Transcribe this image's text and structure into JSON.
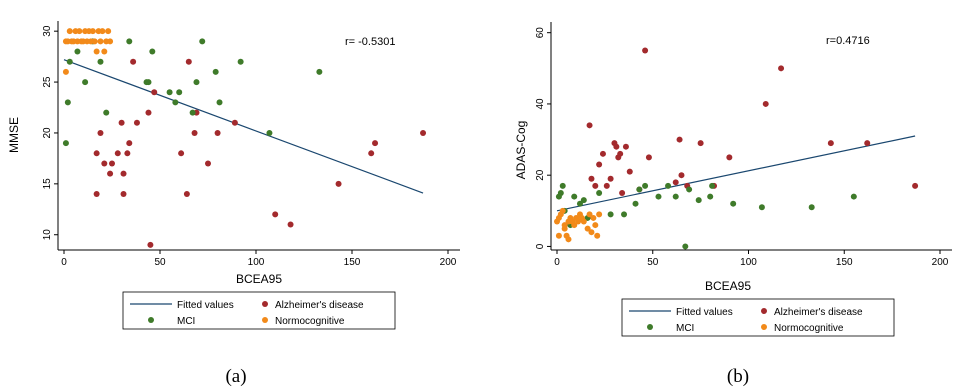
{
  "colors": {
    "fitted": "#1a476f",
    "alzheimer": "#a32a2d",
    "mci": "#3f7b2a",
    "normo": "#f28a1a"
  },
  "chart_data": [
    {
      "type": "scatter",
      "panel_label": "(a)",
      "xlabel": "BCEA95",
      "ylabel": "MMSE",
      "xlim": [
        0,
        200
      ],
      "ylim": [
        8.5,
        31
      ],
      "xticks": [
        0,
        50,
        100,
        150,
        200
      ],
      "yticks": [
        10,
        15,
        20,
        25,
        30
      ],
      "annotation": "r= -0.5301",
      "legend": {
        "position": "bottom",
        "entries": [
          "Fitted values",
          "Alzheimer's disease",
          "MCI",
          "Normocognitive"
        ]
      },
      "fit": {
        "name": "Fitted values",
        "x": [
          0,
          187
        ],
        "y": [
          27.2,
          14.1
        ]
      },
      "series": [
        {
          "name": "Alzheimer's disease",
          "color_key": "alzheimer",
          "points": [
            [
              17,
              18
            ],
            [
              17,
              14
            ],
            [
              19,
              20
            ],
            [
              21,
              17
            ],
            [
              24,
              16
            ],
            [
              25,
              17
            ],
            [
              28,
              18
            ],
            [
              30,
              21
            ],
            [
              31,
              14
            ],
            [
              31,
              16
            ],
            [
              33,
              18
            ],
            [
              34,
              19
            ],
            [
              36,
              27
            ],
            [
              38,
              21
            ],
            [
              44,
              22
            ],
            [
              45,
              9
            ],
            [
              47,
              24
            ],
            [
              61,
              18
            ],
            [
              64,
              14
            ],
            [
              65,
              27
            ],
            [
              68,
              20
            ],
            [
              69,
              22
            ],
            [
              75,
              17
            ],
            [
              80,
              20
            ],
            [
              89,
              21
            ],
            [
              110,
              12
            ],
            [
              118,
              11
            ],
            [
              143,
              15
            ],
            [
              160,
              18
            ],
            [
              162,
              19
            ],
            [
              187,
              20
            ]
          ]
        },
        {
          "name": "MCI",
          "color_key": "mci",
          "points": [
            [
              1,
              19
            ],
            [
              2,
              23
            ],
            [
              3,
              27
            ],
            [
              7,
              28
            ],
            [
              11,
              25
            ],
            [
              15,
              29
            ],
            [
              19,
              27
            ],
            [
              22,
              22
            ],
            [
              34,
              29
            ],
            [
              43,
              25
            ],
            [
              44,
              25
            ],
            [
              46,
              28
            ],
            [
              55,
              24
            ],
            [
              58,
              23
            ],
            [
              60,
              24
            ],
            [
              67,
              22
            ],
            [
              69,
              25
            ],
            [
              72,
              29
            ],
            [
              79,
              26
            ],
            [
              81,
              23
            ],
            [
              92,
              27
            ],
            [
              107,
              20
            ],
            [
              133,
              26
            ]
          ]
        },
        {
          "name": "Normocognitive",
          "color_key": "normo",
          "points": [
            [
              1,
              26
            ],
            [
              1,
              29
            ],
            [
              2,
              29
            ],
            [
              3,
              30
            ],
            [
              4,
              29
            ],
            [
              5,
              29
            ],
            [
              6,
              30
            ],
            [
              7,
              29
            ],
            [
              8,
              30
            ],
            [
              9,
              29
            ],
            [
              10,
              29
            ],
            [
              11,
              30
            ],
            [
              12,
              29
            ],
            [
              13,
              30
            ],
            [
              14,
              29
            ],
            [
              15,
              30
            ],
            [
              16,
              29
            ],
            [
              17,
              28
            ],
            [
              18,
              30
            ],
            [
              19,
              29
            ],
            [
              20,
              30
            ],
            [
              21,
              28
            ],
            [
              22,
              29
            ],
            [
              23,
              30
            ],
            [
              24,
              29
            ]
          ]
        }
      ]
    },
    {
      "type": "scatter",
      "panel_label": "(b)",
      "xlabel": "BCEA95",
      "ylabel": "ADAS-Cog",
      "xlim": [
        0,
        200
      ],
      "ylim": [
        -1,
        63
      ],
      "xticks": [
        0,
        50,
        100,
        150,
        200
      ],
      "yticks": [
        0,
        20,
        40,
        60
      ],
      "annotation": "r=0.4716",
      "legend": {
        "position": "bottom",
        "entries": [
          "Fitted values",
          "Alzheimer's disease",
          "MCI",
          "Normocognitive"
        ]
      },
      "fit": {
        "name": "Fitted values",
        "x": [
          0,
          187
        ],
        "y": [
          10,
          31
        ]
      },
      "series": [
        {
          "name": "Alzheimer's disease",
          "color_key": "alzheimer",
          "points": [
            [
              17,
              34
            ],
            [
              18,
              19
            ],
            [
              20,
              17
            ],
            [
              22,
              23
            ],
            [
              24,
              26
            ],
            [
              26,
              17
            ],
            [
              28,
              19
            ],
            [
              30,
              29
            ],
            [
              31,
              28
            ],
            [
              32,
              25
            ],
            [
              33,
              26
            ],
            [
              34,
              15
            ],
            [
              36,
              28
            ],
            [
              38,
              21
            ],
            [
              43,
              16
            ],
            [
              46,
              55
            ],
            [
              48,
              25
            ],
            [
              62,
              18
            ],
            [
              64,
              30
            ],
            [
              65,
              20
            ],
            [
              68,
              17
            ],
            [
              75,
              29
            ],
            [
              82,
              17
            ],
            [
              90,
              25
            ],
            [
              109,
              40
            ],
            [
              117,
              50
            ],
            [
              143,
              29
            ],
            [
              162,
              29
            ],
            [
              187,
              17
            ]
          ]
        },
        {
          "name": "MCI",
          "color_key": "mci",
          "points": [
            [
              1,
              14
            ],
            [
              2,
              15
            ],
            [
              3,
              17
            ],
            [
              4,
              10
            ],
            [
              7,
              6
            ],
            [
              9,
              14
            ],
            [
              12,
              12
            ],
            [
              14,
              13
            ],
            [
              16,
              8
            ],
            [
              22,
              15
            ],
            [
              28,
              9
            ],
            [
              35,
              9
            ],
            [
              41,
              12
            ],
            [
              43,
              16
            ],
            [
              46,
              17
            ],
            [
              53,
              14
            ],
            [
              58,
              17
            ],
            [
              62,
              14
            ],
            [
              67,
              0
            ],
            [
              69,
              16
            ],
            [
              74,
              13
            ],
            [
              80,
              14
            ],
            [
              81,
              17
            ],
            [
              92,
              12
            ],
            [
              107,
              11
            ],
            [
              133,
              11
            ],
            [
              155,
              14
            ]
          ]
        },
        {
          "name": "Normocognitive",
          "color_key": "normo",
          "points": [
            [
              0,
              7
            ],
            [
              1,
              8
            ],
            [
              1,
              3
            ],
            [
              2,
              9
            ],
            [
              3,
              10
            ],
            [
              4,
              6
            ],
            [
              4,
              5
            ],
            [
              5,
              3
            ],
            [
              6,
              7
            ],
            [
              6,
              2
            ],
            [
              7,
              8
            ],
            [
              8,
              7
            ],
            [
              9,
              6
            ],
            [
              10,
              8
            ],
            [
              11,
              7
            ],
            [
              12,
              9
            ],
            [
              13,
              8
            ],
            [
              14,
              7
            ],
            [
              16,
              5
            ],
            [
              17,
              9
            ],
            [
              18,
              4
            ],
            [
              19,
              8
            ],
            [
              20,
              6
            ],
            [
              21,
              3
            ],
            [
              22,
              9
            ]
          ]
        }
      ]
    }
  ]
}
